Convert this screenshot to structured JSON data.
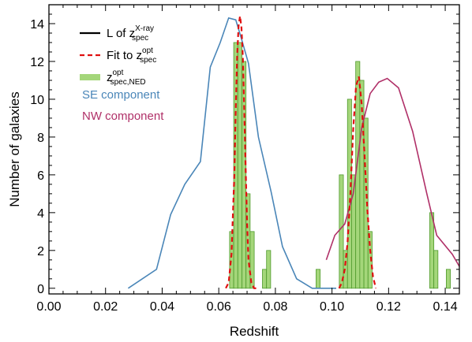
{
  "chart_data": {
    "type": "bar",
    "xlabel": "Redshift",
    "ylabel": "Number of galaxies",
    "xlim": [
      0.0,
      0.145
    ],
    "ylim": [
      -0.3,
      15.0
    ],
    "x_ticks": [
      "0.00",
      "0.02",
      "0.04",
      "0.06",
      "0.08",
      "0.10",
      "0.12",
      "0.14"
    ],
    "x_tick_values": [
      0.0,
      0.02,
      0.04,
      0.06,
      0.08,
      0.1,
      0.12,
      0.14
    ],
    "y_ticks": [
      "0",
      "2",
      "4",
      "6",
      "8",
      "10",
      "12",
      "14"
    ],
    "y_tick_values": [
      0,
      2,
      4,
      6,
      8,
      10,
      12,
      14
    ],
    "bin_width": 0.00145,
    "histogram": {
      "color": "#a4d67a",
      "edge_color": "#4f9a2c",
      "bins": [
        {
          "x": 0.06455,
          "y": 3
        },
        {
          "x": 0.066,
          "y": 13
        },
        {
          "x": 0.06745,
          "y": 13
        },
        {
          "x": 0.0689,
          "y": 12
        },
        {
          "x": 0.07035,
          "y": 5
        },
        {
          "x": 0.0718,
          "y": 3
        },
        {
          "x": 0.07615,
          "y": 1
        },
        {
          "x": 0.0776,
          "y": 2
        },
        {
          "x": 0.0951,
          "y": 1
        },
        {
          "x": 0.1033,
          "y": 6
        },
        {
          "x": 0.10475,
          "y": 2
        },
        {
          "x": 0.1062,
          "y": 10
        },
        {
          "x": 0.10765,
          "y": 6
        },
        {
          "x": 0.1091,
          "y": 12
        },
        {
          "x": 0.11055,
          "y": 11
        },
        {
          "x": 0.112,
          "y": 9
        },
        {
          "x": 0.11345,
          "y": 3
        },
        {
          "x": 0.13525,
          "y": 4
        },
        {
          "x": 0.1367,
          "y": 2
        },
        {
          "x": 0.1411,
          "y": 1
        }
      ]
    },
    "series": [
      {
        "name": "SE component",
        "color": "#4a86b8",
        "x": [
          0.028,
          0.038,
          0.043,
          0.048,
          0.0535,
          0.057,
          0.0605,
          0.0635,
          0.066,
          0.068,
          0.0705,
          0.074,
          0.0785,
          0.0825,
          0.0875,
          0.093,
          0.097,
          0.1015
        ],
        "y": [
          0,
          1,
          3.9,
          5.5,
          6.7,
          11.7,
          13.0,
          14.3,
          14.2,
          13.2,
          11.9,
          8.0,
          5.1,
          2.2,
          0.5,
          0,
          0,
          0
        ]
      },
      {
        "name": "NW component",
        "color": "#b03068",
        "x": [
          0.098,
          0.101,
          0.1045,
          0.1075,
          0.1105,
          0.1135,
          0.1165,
          0.1195,
          0.1235,
          0.1285,
          0.1335,
          0.137,
          0.1425,
          0.146
        ],
        "y": [
          1.5,
          2.8,
          3.4,
          5.0,
          8.5,
          10.3,
          10.9,
          11.1,
          10.6,
          8.3,
          5.0,
          2.8,
          1.8,
          0.9
        ]
      },
      {
        "name": "Fit to z spec opt",
        "color": "#e01010",
        "dashed": true,
        "x": [
          0.0625,
          0.0635,
          0.0645,
          0.0655,
          0.066,
          0.0665,
          0.067,
          0.0675,
          0.068,
          0.0685,
          0.069,
          0.0695,
          0.07,
          0.0705,
          0.0715,
          0.0725,
          0.0735
        ],
        "y": [
          0,
          0.3,
          1.8,
          6.0,
          9.5,
          12.3,
          13.9,
          14.4,
          13.8,
          12.2,
          9.5,
          6.4,
          3.5,
          1.5,
          0.3,
          0,
          0
        ],
        "x2": [
          0.1025,
          0.1035,
          0.1045,
          0.1055,
          0.1065,
          0.1075,
          0.1085,
          0.1095,
          0.1105,
          0.1115,
          0.1125,
          0.1135,
          0.1145,
          0.1155
        ],
        "y2": [
          0,
          0.3,
          1.0,
          2.4,
          5.0,
          8.4,
          10.7,
          11.2,
          9.7,
          7.0,
          4.2,
          2.0,
          0.6,
          0
        ]
      }
    ],
    "legend": {
      "position": "top-left",
      "entries": [
        {
          "label_main": "L of z",
          "sup": "X-ray",
          "sub": "spec",
          "style": "solid",
          "color": "#000000"
        },
        {
          "label_main": "Fit to z",
          "sup": "opt",
          "sub": "spec",
          "style": "dashed",
          "color": "#e01010"
        },
        {
          "label_main": "z",
          "sup": "opt",
          "sub": "spec,NED",
          "style": "bar",
          "color": "#a4d67a"
        }
      ],
      "text_entries": [
        {
          "label": "SE component",
          "color": "#4a86b8"
        },
        {
          "label": "NW component",
          "color": "#b03068"
        }
      ]
    },
    "grid": false
  }
}
